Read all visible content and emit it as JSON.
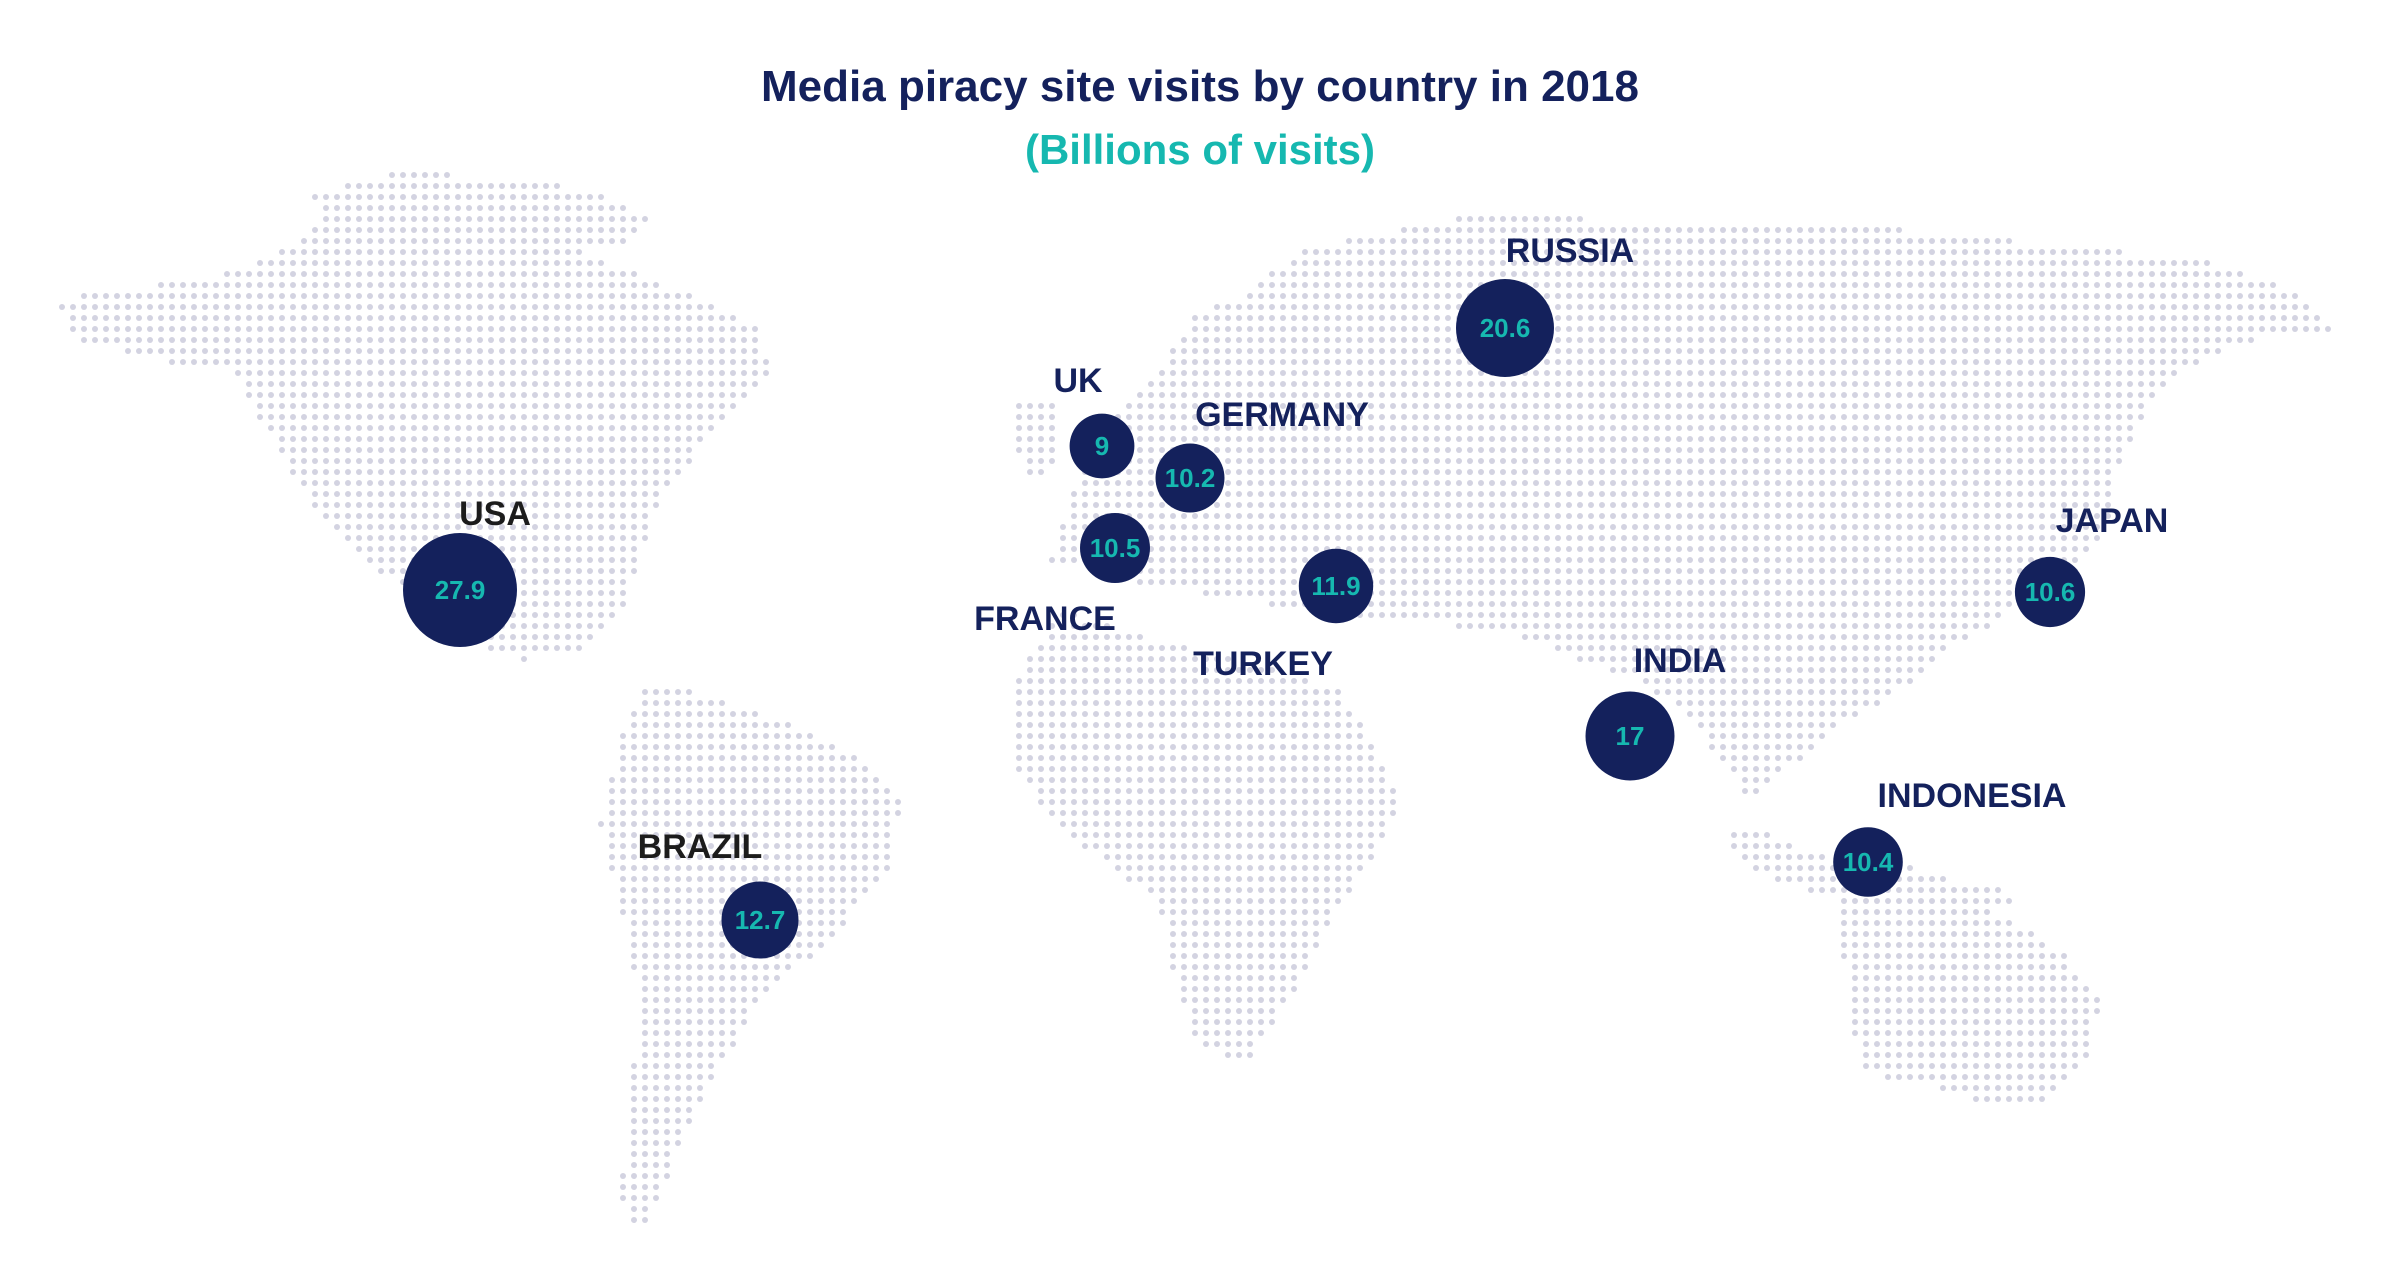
{
  "title": "Media piracy site visits by country in 2018",
  "subtitle": "(Billions of visits)",
  "colors": {
    "bubble": "#14215c",
    "value_text": "#16b8b0",
    "label_navy": "#14215c",
    "label_dark": "#1c1c1c",
    "dots": "#d3d3e1"
  },
  "chart_data": {
    "type": "bubble-map",
    "title": "Media piracy site visits by country in 2018",
    "subtitle": "(Billions of visits)",
    "countries": [
      {
        "name": "USA",
        "value": 27.9,
        "value_label": "27.9"
      },
      {
        "name": "RUSSIA",
        "value": 20.6,
        "value_label": "20.6"
      },
      {
        "name": "INDIA",
        "value": 17,
        "value_label": "17"
      },
      {
        "name": "BRAZIL",
        "value": 12.7,
        "value_label": "12.7"
      },
      {
        "name": "TURKEY",
        "value": 11.9,
        "value_label": "11.9"
      },
      {
        "name": "JAPAN",
        "value": 10.6,
        "value_label": "10.6"
      },
      {
        "name": "FRANCE",
        "value": 10.5,
        "value_label": "10.5"
      },
      {
        "name": "INDONESIA",
        "value": 10.4,
        "value_label": "10.4"
      },
      {
        "name": "GERMANY",
        "value": 10.2,
        "value_label": "10.2"
      },
      {
        "name": "UK",
        "value": 9,
        "value_label": "9"
      }
    ]
  }
}
